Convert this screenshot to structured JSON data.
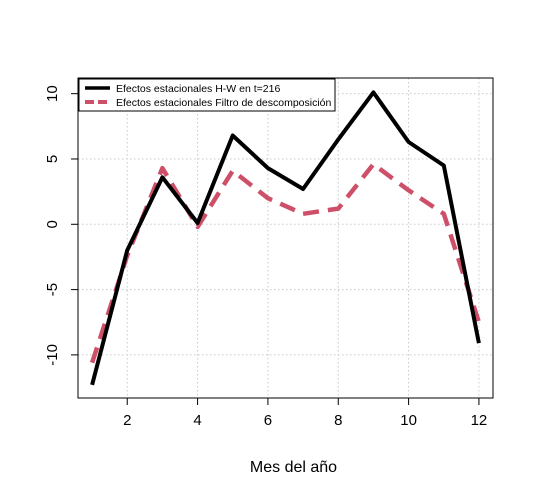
{
  "chart_data": {
    "type": "line",
    "title": "",
    "xlabel": "Mes del año",
    "ylabel": "",
    "x": [
      1,
      2,
      3,
      4,
      5,
      6,
      7,
      8,
      9,
      10,
      11,
      12
    ],
    "xticks": [
      2,
      4,
      6,
      8,
      10,
      12
    ],
    "yticks": [
      -10,
      -5,
      0,
      5,
      10
    ],
    "xlim": [
      0.6,
      12.4
    ],
    "ylim": [
      -13.3,
      11.2
    ],
    "grid": true,
    "legend_position": "top-left",
    "series": [
      {
        "name": "Efectos estacionales H-W en t=216",
        "color": "#000000",
        "style": "solid",
        "values": [
          -12.3,
          -2.0,
          3.6,
          0.1,
          6.8,
          4.3,
          2.7,
          6.5,
          10.1,
          6.3,
          4.5,
          -9.1
        ]
      },
      {
        "name": "Efectos estacionales Filtro de descomposición",
        "color": "#cd5068",
        "style": "dashed",
        "values": [
          -10.6,
          -2.4,
          4.3,
          -0.2,
          4.1,
          2.0,
          0.8,
          1.2,
          4.6,
          2.6,
          0.8,
          -7.5
        ]
      }
    ]
  }
}
